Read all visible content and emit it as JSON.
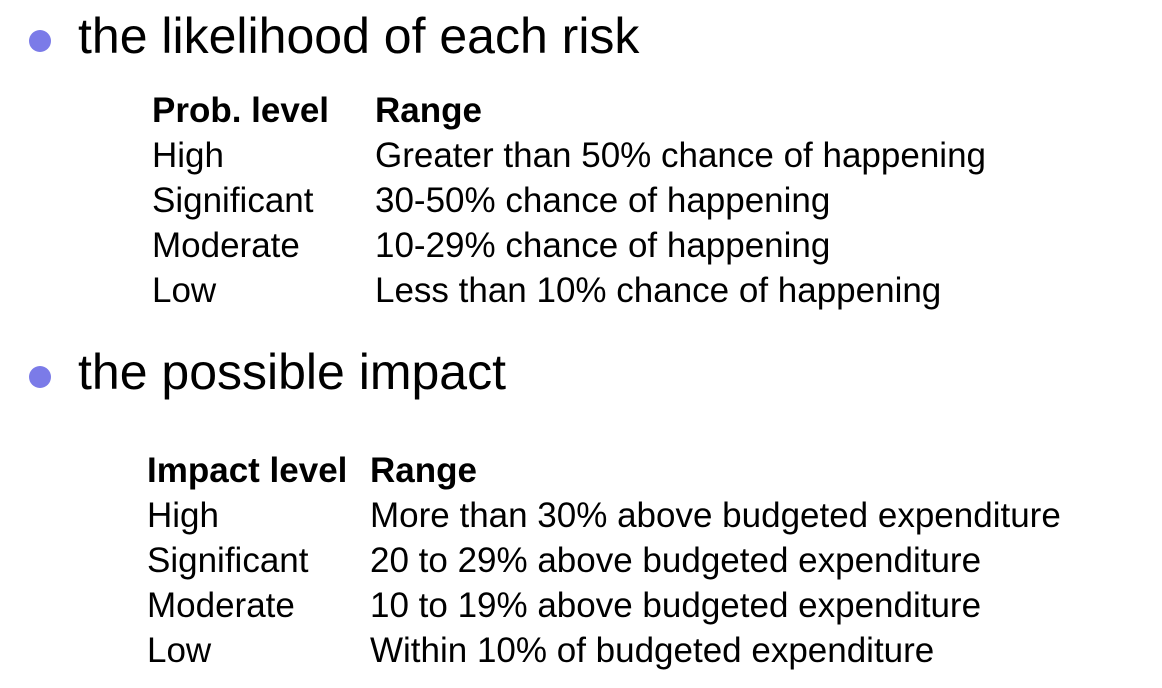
{
  "section1": {
    "heading": "the likelihood of each risk",
    "columns": [
      "Prob. level",
      "Range"
    ],
    "rows": [
      [
        "High",
        "Greater than 50% chance of happening"
      ],
      [
        "Significant",
        "30-50% chance of happening"
      ],
      [
        "Moderate",
        "10-29% chance of happening"
      ],
      [
        "Low",
        "Less than 10% chance of happening"
      ]
    ]
  },
  "section2": {
    "heading": "the possible impact",
    "columns": [
      "Impact level",
      "Range"
    ],
    "rows": [
      [
        "High",
        "More than 30% above budgeted expenditure"
      ],
      [
        "Significant",
        "20 to 29% above budgeted expenditure"
      ],
      [
        "Moderate",
        "10 to 19% above budgeted expenditure"
      ],
      [
        "Low",
        "Within 10% of budgeted expenditure"
      ]
    ]
  },
  "colors": {
    "bullet": "#7B7BE8",
    "text": "#000000"
  }
}
